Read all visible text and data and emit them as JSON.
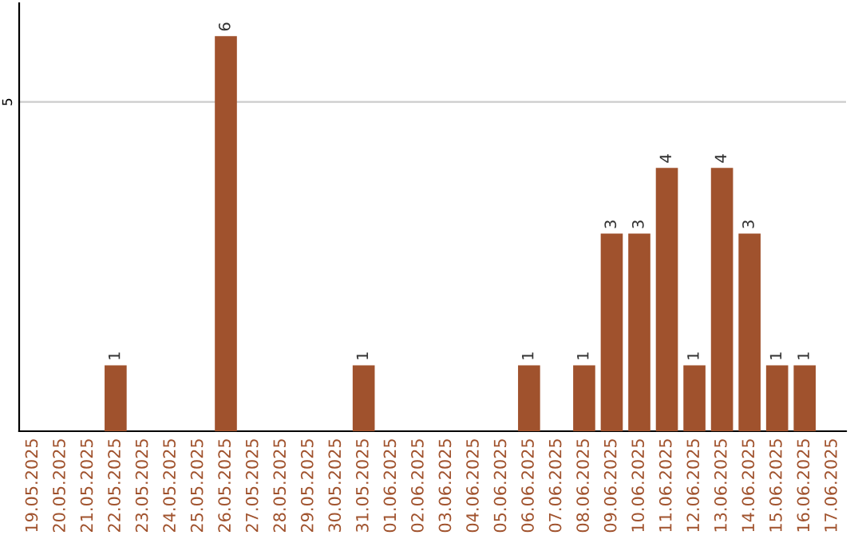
{
  "chart_data": {
    "type": "bar",
    "categories": [
      "19.05.2025",
      "20.05.2025",
      "21.05.2025",
      "22.05.2025",
      "23.05.2025",
      "24.05.2025",
      "25.05.2025",
      "26.05.2025",
      "27.05.2025",
      "28.05.2025",
      "29.05.2025",
      "30.05.2025",
      "31.05.2025",
      "01.06.2025",
      "02.06.2025",
      "03.06.2025",
      "04.06.2025",
      "05.06.2025",
      "06.06.2025",
      "07.06.2025",
      "08.06.2025",
      "09.06.2025",
      "10.06.2025",
      "11.06.2025",
      "12.06.2025",
      "13.06.2025",
      "14.06.2025",
      "15.06.2025",
      "16.06.2025",
      "17.06.2025"
    ],
    "values": [
      0,
      0,
      0,
      1,
      0,
      0,
      0,
      6,
      0,
      0,
      0,
      0,
      1,
      0,
      0,
      0,
      0,
      0,
      1,
      0,
      1,
      3,
      3,
      4,
      1,
      4,
      3,
      1,
      1,
      0
    ],
    "value_labels": [
      null,
      null,
      null,
      "1",
      null,
      null,
      null,
      "6",
      null,
      null,
      null,
      null,
      "1",
      null,
      null,
      null,
      null,
      null,
      "1",
      null,
      "1",
      "3",
      "3",
      "4",
      "1",
      "4",
      "3",
      "1",
      "1",
      null
    ],
    "color": "#a0522d",
    "ylim": [
      0,
      6.5
    ],
    "yticks": [
      5
    ],
    "grid": "y"
  }
}
